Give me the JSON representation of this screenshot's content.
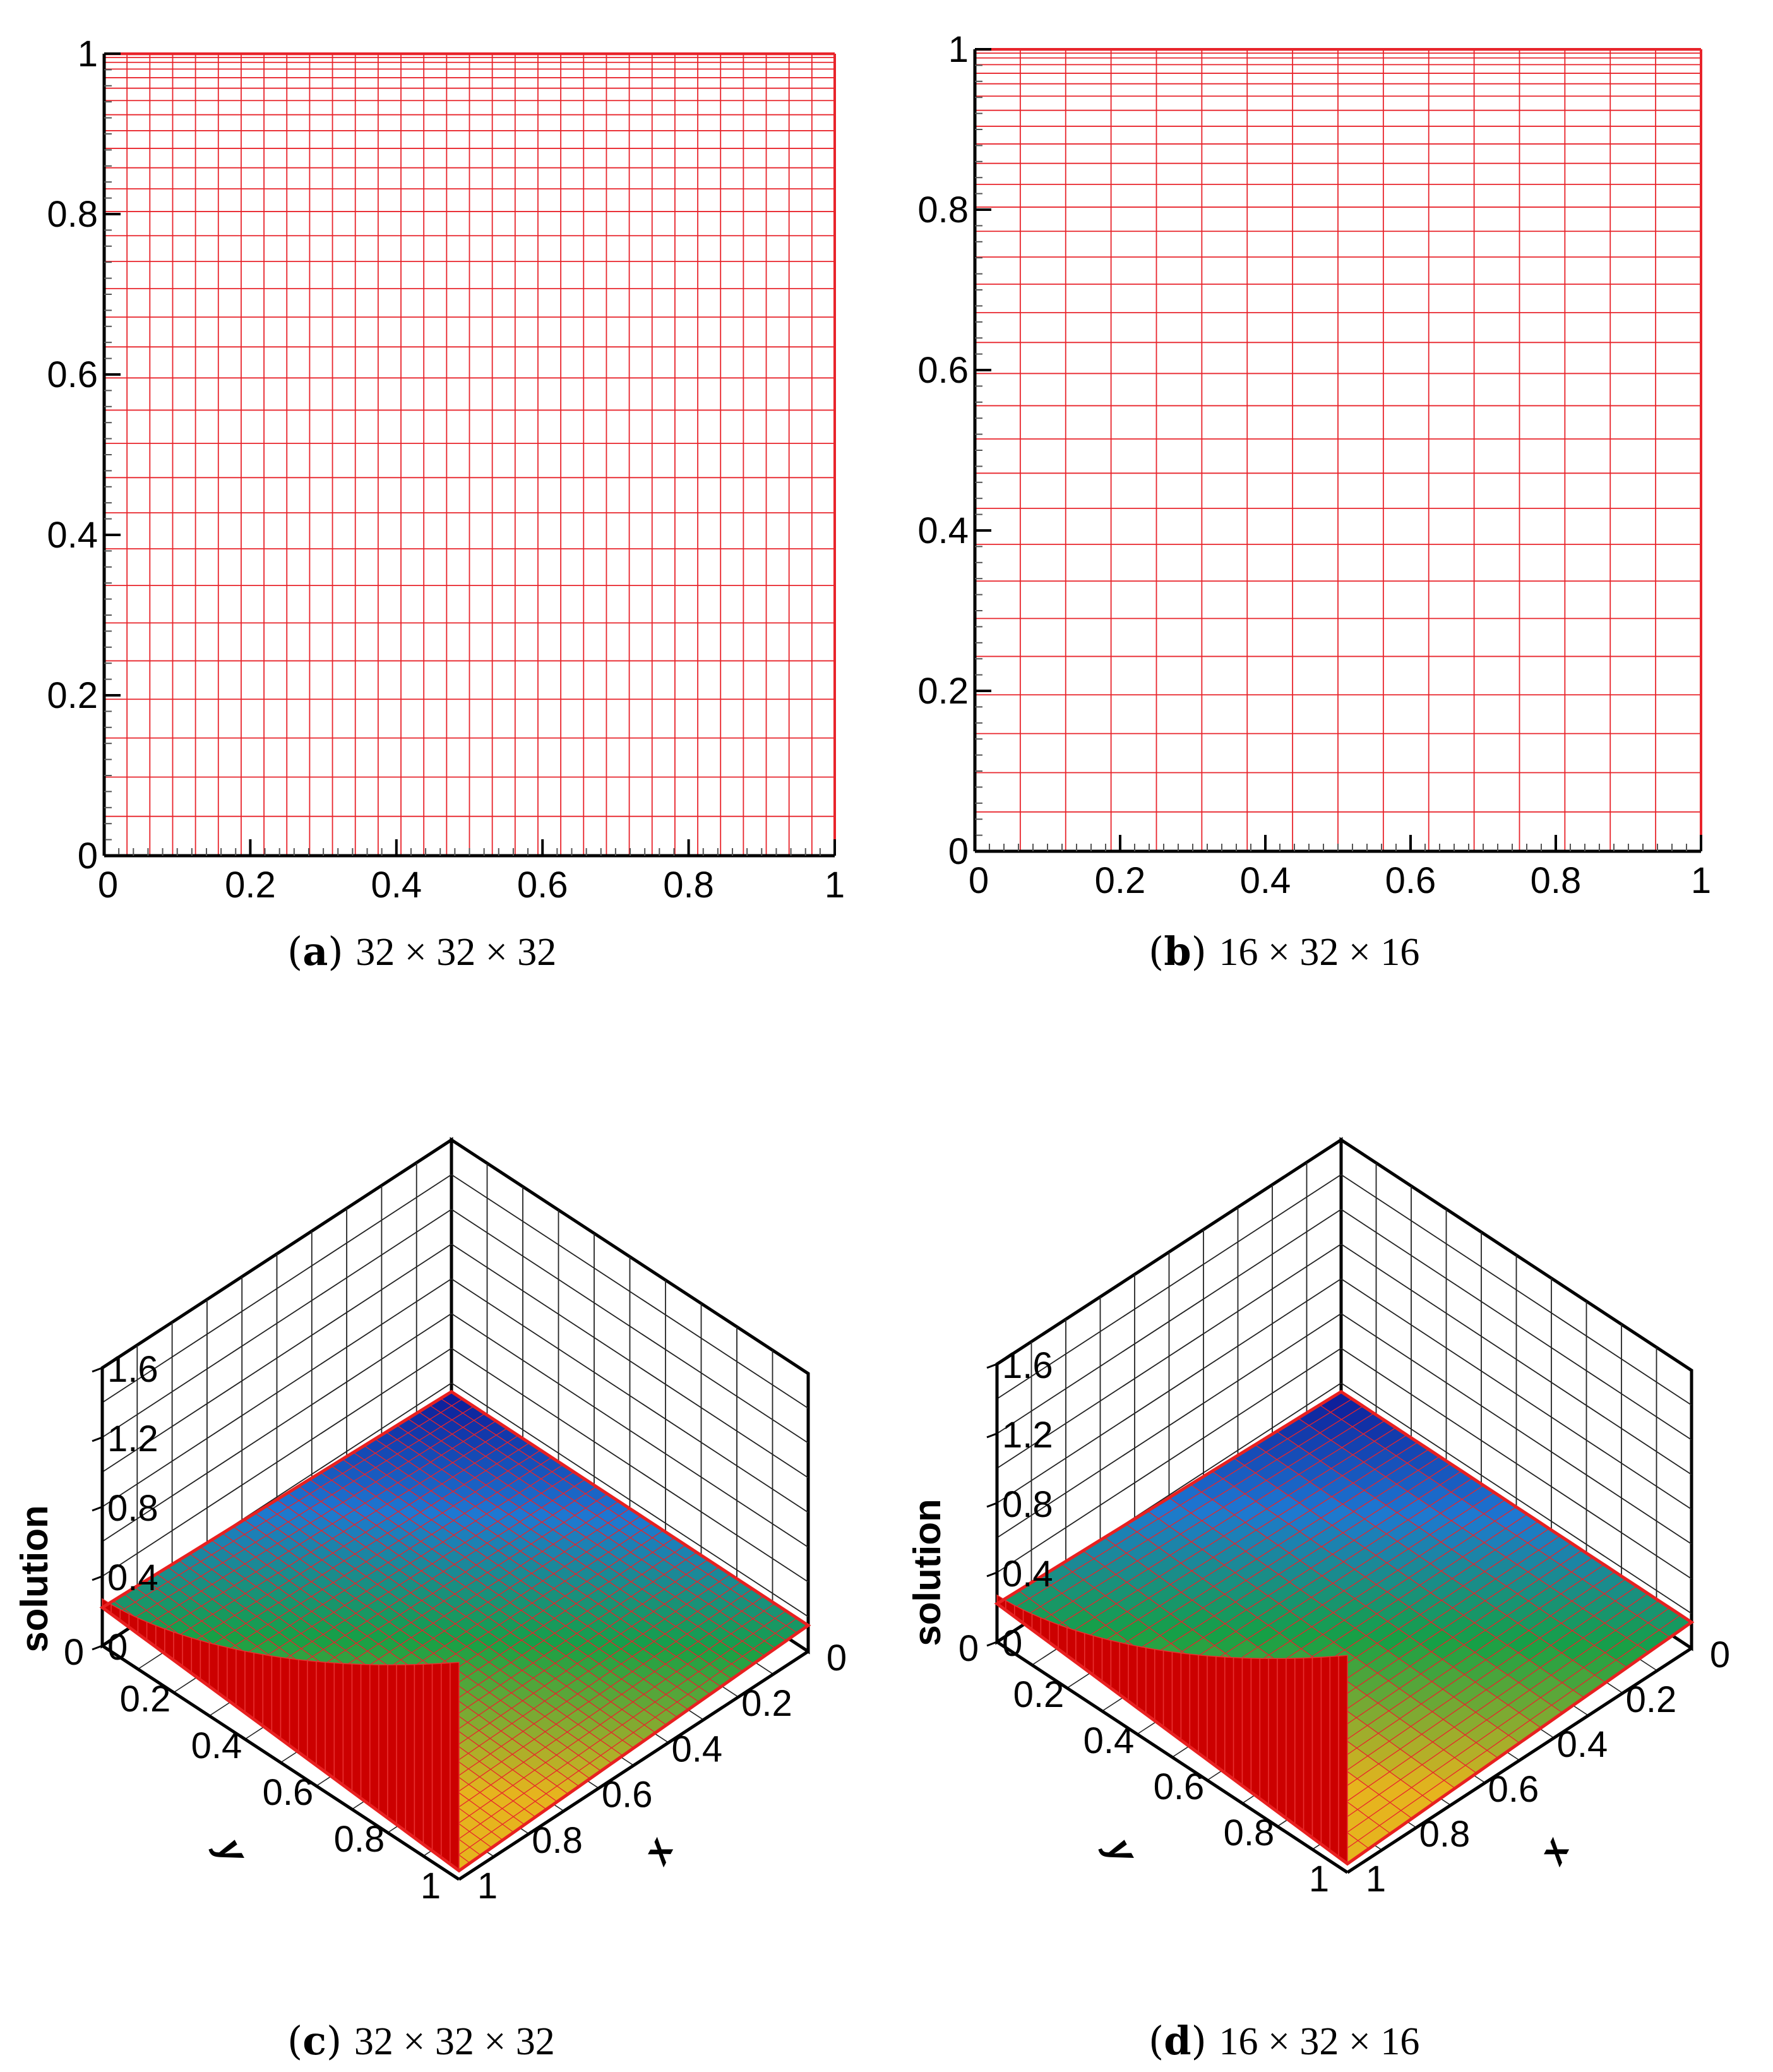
{
  "panels": {
    "a": {
      "letter": "a",
      "text": "32 × 32 × 32"
    },
    "b": {
      "letter": "b",
      "text": "16 × 32 × 16"
    },
    "c": {
      "letter": "c",
      "text": "32 × 32 × 32"
    },
    "d": {
      "letter": "d",
      "text": "16 × 32 × 16"
    }
  },
  "colors": {
    "mesh": "#e8242b",
    "axis": "#000000",
    "wall": "#cc0000",
    "low": "#0a1a9c",
    "mid": "#16a05a",
    "high": "#e0c020"
  },
  "chart_data": [
    {
      "id": "a",
      "type": "mesh",
      "title": "32 × 32 × 32",
      "xlim": [
        0,
        1
      ],
      "ylim": [
        0,
        1
      ],
      "xticks": [
        "0",
        "0.2",
        "0.4",
        "0.6",
        "0.8",
        "1"
      ],
      "yticks": [
        "0",
        "0.2",
        "0.4",
        "0.6",
        "0.8",
        "1"
      ],
      "nx": 32,
      "ny": 32,
      "y_clustering": "refined toward y = 1"
    },
    {
      "id": "b",
      "type": "mesh",
      "title": "16 × 32 × 16",
      "xlim": [
        0,
        1
      ],
      "ylim": [
        0,
        1
      ],
      "xticks": [
        "0",
        "0.2",
        "0.4",
        "0.6",
        "0.8",
        "1"
      ],
      "yticks": [
        "0",
        "0.2",
        "0.4",
        "0.6",
        "0.8",
        "1"
      ],
      "nx": 16,
      "ny": 32,
      "y_clustering": "refined toward y = 1"
    },
    {
      "id": "c",
      "type": "surface3d",
      "title": "32 × 32 × 32",
      "zlabel": "solution",
      "xlabel": "x",
      "ylabel": "y",
      "zlim": [
        0,
        1.6
      ],
      "zticks": [
        "0",
        "0.4",
        "0.8",
        "1.2",
        "1.6"
      ],
      "xticks": [
        "0",
        "0.2",
        "0.4",
        "0.6",
        "0.8",
        "1"
      ],
      "yticks": [
        "0",
        "0.2",
        "0.4",
        "0.6",
        "0.8",
        "1"
      ],
      "nx": 32,
      "ny": 32,
      "surface_corners": {
        "x0_y0": 0.15,
        "x0_y1": 0.15,
        "x1_y0": 0.22,
        "x1_y1": 0.05
      },
      "wall_edge": "x = 1",
      "wall_range": [
        0.05,
        1.2
      ]
    },
    {
      "id": "d",
      "type": "surface3d",
      "title": "16 × 32 × 16",
      "zlabel": "solution",
      "xlabel": "x",
      "ylabel": "y",
      "zlim": [
        0,
        1.6
      ],
      "zticks": [
        "0",
        "0.4",
        "0.8",
        "1.2",
        "1.6"
      ],
      "xticks": [
        "0",
        "0.2",
        "0.4",
        "0.6",
        "0.8",
        "1"
      ],
      "yticks": [
        "0",
        "0.2",
        "0.4",
        "0.6",
        "0.8",
        "1"
      ],
      "nx": 16,
      "ny": 32,
      "surface_corners": {
        "x0_y0": 0.15,
        "x0_y1": 0.15,
        "x1_y0": 0.22,
        "x1_y1": 0.05
      },
      "wall_edge": "x = 1",
      "wall_range": [
        0.05,
        1.2
      ]
    }
  ]
}
